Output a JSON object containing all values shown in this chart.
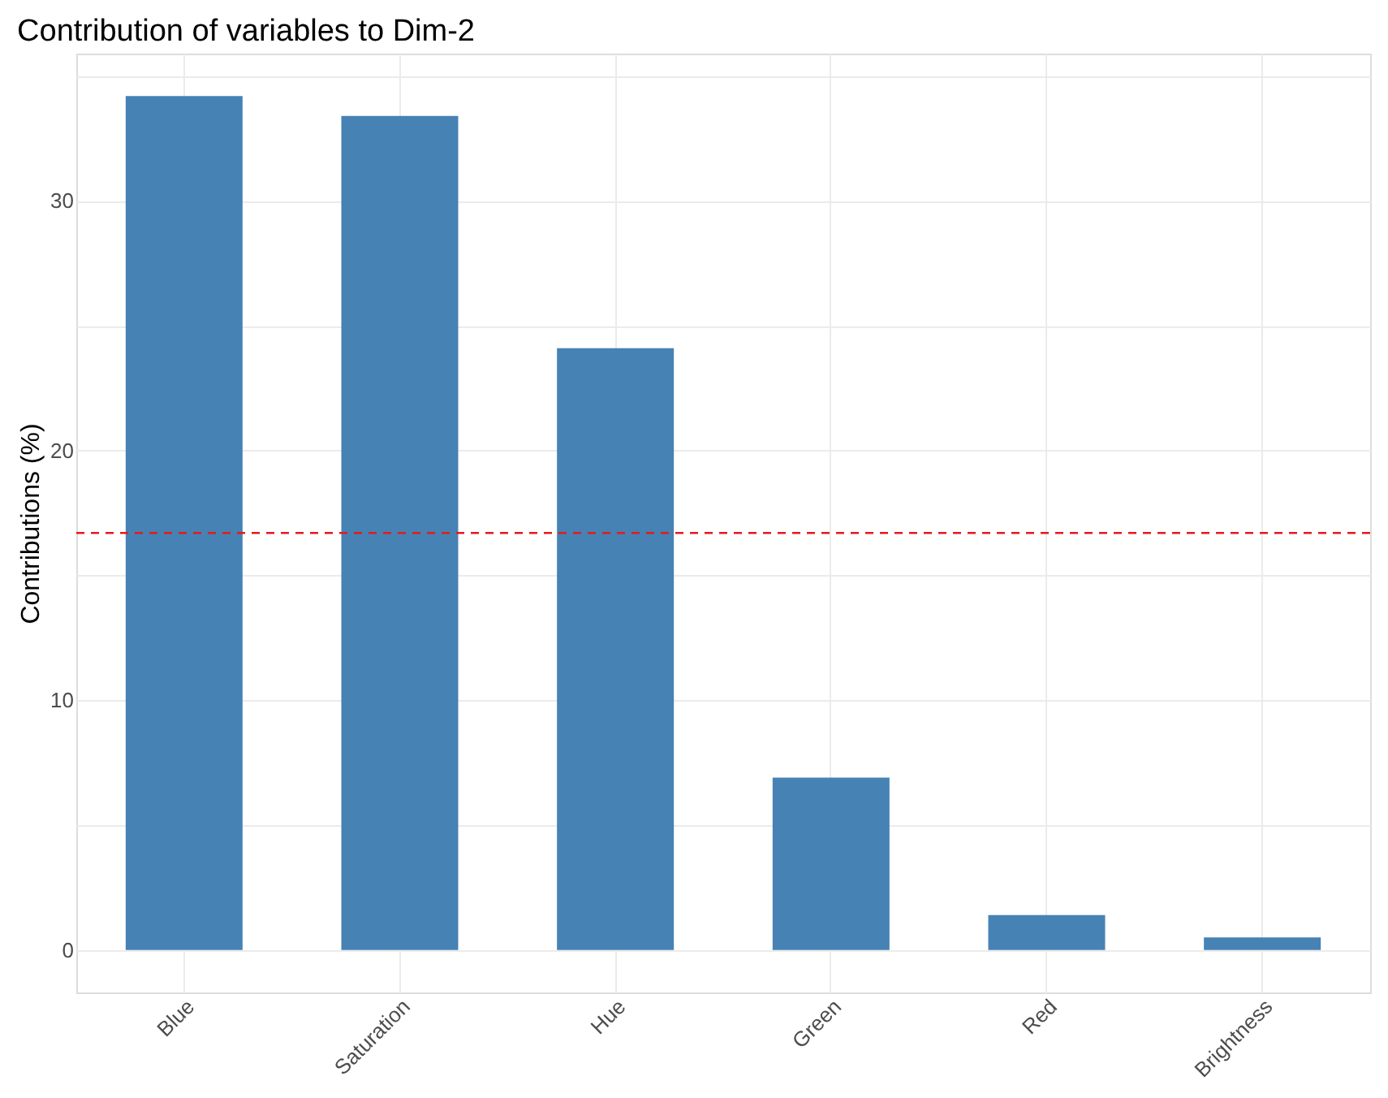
{
  "chart_data": {
    "type": "bar",
    "title": "Contribution of variables to Dim-2",
    "ylabel": "Contributions (%)",
    "categories": [
      "Blue",
      "Saturation",
      "Hue",
      "Green",
      "Red",
      "Brightness"
    ],
    "values": [
      34.2,
      33.4,
      24.1,
      6.9,
      1.4,
      0.5
    ],
    "color": "#4682b4",
    "ylim": [
      -1.7,
      35.9
    ],
    "yticks": [
      0,
      {
        "value": 5,
        "label": null
      },
      10,
      {
        "value": 15,
        "label": null
      },
      20,
      {
        "value": 25,
        "label": null
      },
      30,
      {
        "value": 35,
        "label": null
      }
    ],
    "ref_lines": [
      {
        "axis": "y",
        "value": 16.7,
        "color": "#e41a1c",
        "line_style": "dashed"
      }
    ],
    "grid": true
  }
}
